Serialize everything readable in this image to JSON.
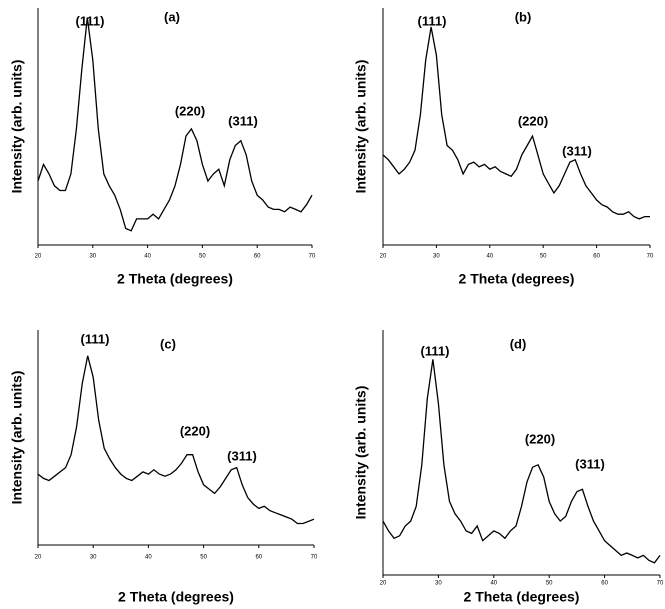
{
  "chart_data": [
    {
      "type": "line",
      "panel_label": "(a)",
      "peak_labels": [
        "(111)",
        "(220)",
        "(311)"
      ],
      "x_label": "2 Theta (degrees)",
      "y_label": "Intensity (arb. units)",
      "xlim": [
        20,
        70
      ],
      "xticks": [
        20,
        30,
        40,
        50,
        60,
        70
      ],
      "ylim": [
        0,
        100
      ],
      "color": "#000000",
      "x": [
        20,
        21,
        22,
        23,
        24,
        25,
        26,
        27,
        28,
        29,
        30,
        31,
        32,
        33,
        34,
        35,
        36,
        37,
        38,
        39,
        40,
        41,
        42,
        43,
        44,
        45,
        46,
        47,
        48,
        49,
        50,
        51,
        52,
        53,
        54,
        55,
        56,
        57,
        58,
        59,
        60,
        61,
        62,
        63,
        64,
        65,
        66,
        67,
        68,
        69,
        70
      ],
      "values": [
        27,
        34,
        30,
        25,
        23,
        23,
        30,
        49,
        74,
        96,
        78,
        49,
        30,
        25,
        21,
        15,
        7,
        6,
        11,
        11,
        11,
        13,
        11,
        15,
        19,
        25,
        34,
        46,
        49,
        44,
        34,
        27,
        30,
        32,
        25,
        36,
        42,
        44,
        38,
        27,
        21,
        19,
        16,
        15,
        15,
        14,
        16,
        15,
        14,
        17,
        21
      ]
    },
    {
      "type": "line",
      "panel_label": "(b)",
      "peak_labels": [
        "(111)",
        "(220)",
        "(311)"
      ],
      "x_label": "2 Theta (degrees)",
      "y_label": "Intensity (arb. units)",
      "xlim": [
        20,
        70
      ],
      "xticks": [
        20,
        30,
        40,
        50,
        60,
        70
      ],
      "ylim": [
        0,
        100
      ],
      "color": "#000000",
      "x": [
        20,
        21,
        22,
        23,
        24,
        25,
        26,
        27,
        28,
        29,
        30,
        31,
        32,
        33,
        34,
        35,
        36,
        37,
        38,
        39,
        40,
        41,
        42,
        43,
        44,
        45,
        46,
        47,
        48,
        49,
        50,
        51,
        52,
        53,
        54,
        55,
        56,
        57,
        58,
        59,
        60,
        61,
        62,
        63,
        64,
        65,
        66,
        67,
        68,
        69,
        70
      ],
      "values": [
        38,
        36,
        33,
        30,
        32,
        35,
        40,
        55,
        78,
        92,
        80,
        55,
        42,
        40,
        36,
        30,
        34,
        35,
        33,
        34,
        32,
        33,
        31,
        30,
        29,
        32,
        38,
        42,
        46,
        38,
        30,
        26,
        22,
        25,
        30,
        35,
        36,
        30,
        25,
        22,
        19,
        17,
        16,
        14,
        13,
        13,
        14,
        12,
        11,
        12,
        12
      ]
    },
    {
      "type": "line",
      "panel_label": "(c)",
      "peak_labels": [
        "(111)",
        "(220)",
        "(311)"
      ],
      "x_label": "2 Theta (degrees)",
      "y_label": "Intensity (arb. units)",
      "xlim": [
        20,
        70
      ],
      "xticks": [
        20,
        30,
        40,
        50,
        60,
        70
      ],
      "ylim": [
        0,
        100
      ],
      "color": "#000000",
      "x": [
        20,
        21,
        22,
        23,
        24,
        25,
        26,
        27,
        28,
        29,
        30,
        31,
        32,
        33,
        34,
        35,
        36,
        37,
        38,
        39,
        40,
        41,
        42,
        43,
        44,
        45,
        46,
        47,
        48,
        49,
        50,
        51,
        52,
        53,
        54,
        55,
        56,
        57,
        58,
        59,
        60,
        61,
        62,
        63,
        64,
        65,
        66,
        67,
        68,
        69,
        70
      ],
      "values": [
        33,
        31,
        30,
        32,
        34,
        36,
        42,
        55,
        75,
        88,
        78,
        58,
        45,
        40,
        36,
        33,
        31,
        30,
        32,
        34,
        33,
        35,
        33,
        32,
        33,
        35,
        38,
        42,
        42,
        34,
        28,
        26,
        24,
        27,
        31,
        35,
        36,
        28,
        22,
        19,
        17,
        18,
        16,
        15,
        14,
        13,
        12,
        10,
        10,
        11,
        12
      ]
    },
    {
      "type": "line",
      "panel_label": "(d)",
      "peak_labels": [
        "(111)",
        "(220)",
        "(311)"
      ],
      "x_label": "2 Theta (degrees)",
      "y_label": "Intensity (arb. units)",
      "xlim": [
        20,
        70
      ],
      "xticks": [
        20,
        30,
        40,
        50,
        60,
        70
      ],
      "ylim": [
        0,
        100
      ],
      "color": "#000000",
      "x": [
        20,
        21,
        22,
        23,
        24,
        25,
        26,
        27,
        28,
        29,
        30,
        31,
        32,
        33,
        34,
        35,
        36,
        37,
        38,
        39,
        40,
        41,
        42,
        43,
        44,
        45,
        46,
        47,
        48,
        49,
        50,
        51,
        52,
        53,
        54,
        55,
        56,
        57,
        58,
        59,
        60,
        61,
        62,
        63,
        64,
        65,
        66,
        67,
        68,
        69,
        70
      ],
      "values": [
        22,
        18,
        15,
        16,
        20,
        22,
        28,
        45,
        72,
        88,
        70,
        45,
        30,
        25,
        22,
        18,
        17,
        20,
        14,
        16,
        18,
        17,
        15,
        18,
        20,
        28,
        38,
        44,
        45,
        40,
        30,
        25,
        22,
        24,
        30,
        34,
        35,
        28,
        22,
        18,
        14,
        12,
        10,
        8,
        9,
        8,
        7,
        8,
        6,
        5,
        8
      ]
    }
  ]
}
